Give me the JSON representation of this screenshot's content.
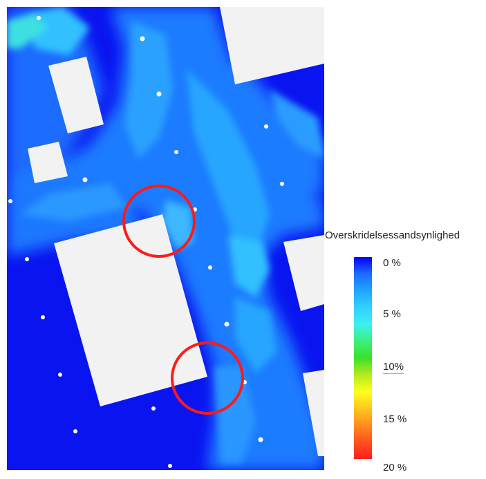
{
  "legend": {
    "title": "Overskridelsessandsynlighed",
    "ticks": [
      {
        "label": "0 %",
        "value": 0
      },
      {
        "label": "5 %",
        "value": 5
      },
      {
        "label": "10%",
        "value": 10
      },
      {
        "label": "15 %",
        "value": 15
      },
      {
        "label": "20 %",
        "value": 20
      }
    ],
    "colorscale": [
      "#0000ff",
      "#1e6cff",
      "#1fa6ff",
      "#33d0ff",
      "#3cf0f0",
      "#3cf07a",
      "#3ce02a",
      "#b4ea1e",
      "#ffff1e",
      "#ffc81e",
      "#ff8c1e",
      "#ff501e",
      "#ff1e1e"
    ]
  },
  "colors": {
    "background_low": "#0a14f0",
    "buildings": "#f2f2f2",
    "markers": "#ff1a1a"
  },
  "markers_count": 2
}
